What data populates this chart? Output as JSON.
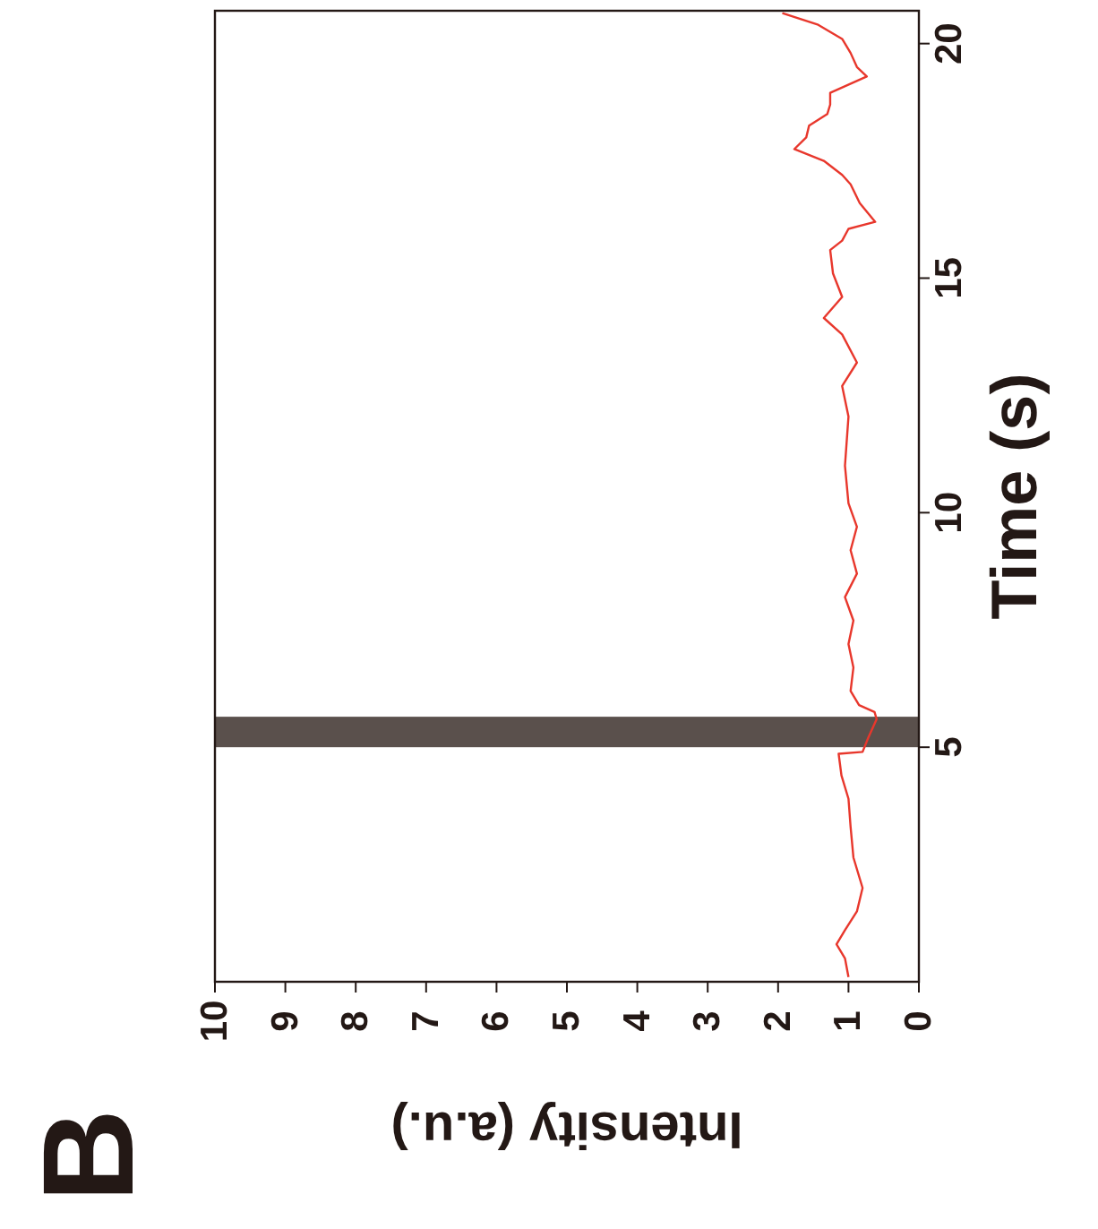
{
  "chart_data": {
    "type": "line",
    "xlabel": "Intensity (a.u.)",
    "ylabel": "Time (s)",
    "annotations": [
      "B"
    ],
    "xlim": [
      10,
      0
    ],
    "xticks": [
      0,
      1,
      2,
      3,
      4,
      5,
      6,
      7,
      8,
      9,
      10
    ],
    "ylim": [
      0,
      20.7
    ],
    "yticks": [
      5,
      10,
      15,
      20
    ],
    "grid": false,
    "bands": [
      {
        "axis": "y",
        "from": 5.0,
        "to": 5.65,
        "color": "#5a504c"
      }
    ],
    "series": [
      {
        "color": "#e8372c",
        "x": [
          1.0,
          1.05,
          1.17,
          1.05,
          0.88,
          0.8,
          0.93,
          0.97,
          1.0,
          1.1,
          1.14,
          0.8,
          0.72,
          0.6,
          0.63,
          0.85,
          0.97,
          0.93,
          1.0,
          0.93,
          1.05,
          0.88,
          0.97,
          0.88,
          1.0,
          1.05,
          1.0,
          1.09,
          0.88,
          1.09,
          1.35,
          1.09,
          1.22,
          1.26,
          1.09,
          1.0,
          0.62,
          0.84,
          0.97,
          1.09,
          1.35,
          1.77,
          1.6,
          1.56,
          1.3,
          1.26,
          1.26,
          0.74,
          0.88,
          0.97,
          1.09,
          1.43,
          1.94
        ],
        "values": [
          0.1,
          0.5,
          0.8,
          1.1,
          1.5,
          2.0,
          2.65,
          3.3,
          3.9,
          4.4,
          4.86,
          4.9,
          5.2,
          5.6,
          5.75,
          5.9,
          6.2,
          6.7,
          7.2,
          7.7,
          8.2,
          8.7,
          9.2,
          9.7,
          10.2,
          11.0,
          12.05,
          12.7,
          13.2,
          13.8,
          14.15,
          14.6,
          15.1,
          15.6,
          15.8,
          16.05,
          16.2,
          16.6,
          17.0,
          17.2,
          17.5,
          17.75,
          18.0,
          18.25,
          18.5,
          18.7,
          18.95,
          19.3,
          19.5,
          19.8,
          20.1,
          20.4,
          20.65
        ]
      }
    ]
  }
}
